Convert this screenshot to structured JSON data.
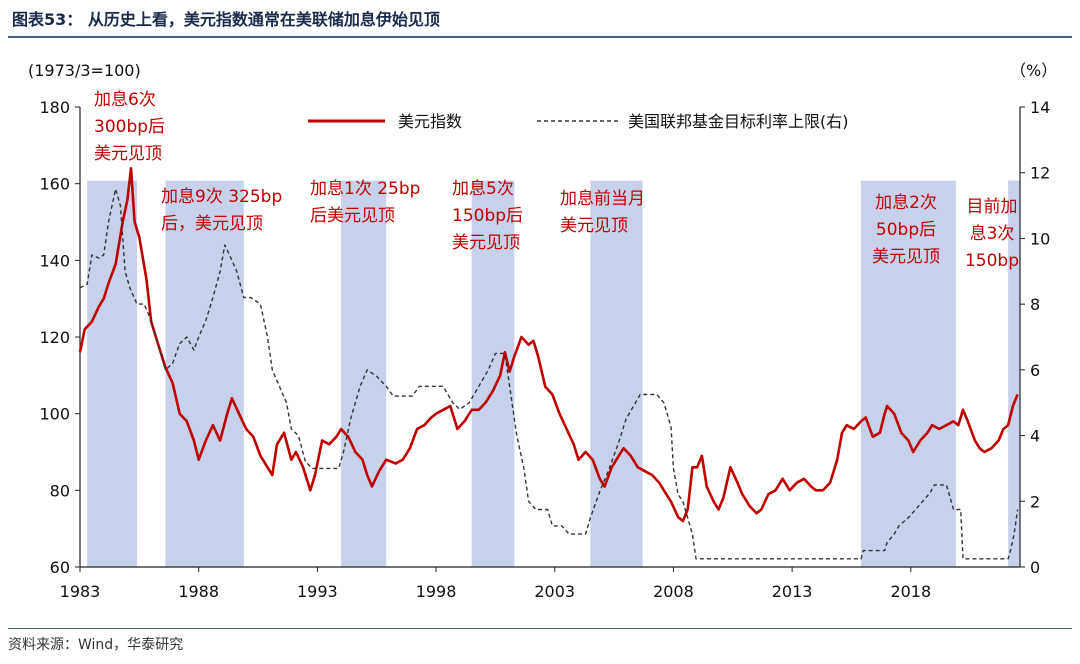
{
  "title": "图表53：  从历史上看，美元指数通常在美联储加息伊始见顶",
  "source": "资料来源：Wind，华泰研究",
  "chart_data": {
    "type": "line",
    "title": "从历史上看，美元指数通常在美联储加息伊始见顶",
    "left_axis_label": "(1973/3=100)",
    "right_axis_label": "（%）",
    "x_range": [
      1983.0,
      2022.6
    ],
    "x_ticks": [
      "1983",
      "1988",
      "1993",
      "1998",
      "2003",
      "2008",
      "2013",
      "2018"
    ],
    "y_left_range": [
      60,
      180
    ],
    "y_left_ticks": [
      60,
      80,
      100,
      120,
      140,
      160,
      180
    ],
    "y_right_range": [
      0,
      14
    ],
    "y_right_ticks": [
      0,
      2,
      4,
      6,
      8,
      10,
      12,
      14
    ],
    "legend": [
      "美元指数",
      "美国联邦基金目标利率上限(右)"
    ],
    "shaded_periods": [
      {
        "start": 1983.3,
        "end": 1985.4
      },
      {
        "start": 1986.6,
        "end": 1989.9
      },
      {
        "start": 1994.0,
        "end": 1995.9
      },
      {
        "start": 1999.5,
        "end": 2001.3
      },
      {
        "start": 2004.5,
        "end": 2006.7
      },
      {
        "start": 2015.9,
        "end": 2019.9
      },
      {
        "start": 2022.1,
        "end": 2022.6
      }
    ],
    "annotations": [
      {
        "lines": [
          "加息6次",
          "300bp后",
          "美元见顶"
        ]
      },
      {
        "lines": [
          "加息9次 325bp",
          "后，美元见顶"
        ]
      },
      {
        "lines": [
          "加息1次 25bp",
          "后美元见顶"
        ]
      },
      {
        "lines": [
          "加息5次",
          "150bp后",
          "美元见顶"
        ]
      },
      {
        "lines": [
          "加息前当月",
          "美元见顶"
        ]
      },
      {
        "lines": [
          "加息2次",
          "50bp后",
          "美元见顶"
        ]
      },
      {
        "lines": [
          "目前加",
          "息3次",
          "150bp"
        ]
      }
    ],
    "series": [
      {
        "name": "美元指数",
        "axis": "left",
        "color": "#c00000",
        "points": [
          [
            1983.0,
            116
          ],
          [
            1983.2,
            122
          ],
          [
            1983.5,
            124
          ],
          [
            1983.8,
            128
          ],
          [
            1984.0,
            130
          ],
          [
            1984.2,
            134
          ],
          [
            1984.5,
            139
          ],
          [
            1984.8,
            150
          ],
          [
            1985.0,
            156
          ],
          [
            1985.15,
            164
          ],
          [
            1985.3,
            150
          ],
          [
            1985.5,
            146
          ],
          [
            1985.8,
            135
          ],
          [
            1986.0,
            124
          ],
          [
            1986.3,
            118
          ],
          [
            1986.6,
            112
          ],
          [
            1986.9,
            108
          ],
          [
            1987.2,
            100
          ],
          [
            1987.5,
            98
          ],
          [
            1987.8,
            93
          ],
          [
            1988.0,
            88
          ],
          [
            1988.3,
            93
          ],
          [
            1988.6,
            97
          ],
          [
            1988.9,
            93
          ],
          [
            1989.2,
            100
          ],
          [
            1989.4,
            104
          ],
          [
            1989.7,
            100
          ],
          [
            1990.0,
            96
          ],
          [
            1990.3,
            94
          ],
          [
            1990.6,
            89
          ],
          [
            1990.9,
            86
          ],
          [
            1991.1,
            84
          ],
          [
            1991.3,
            92
          ],
          [
            1991.6,
            95
          ],
          [
            1991.9,
            88
          ],
          [
            1992.1,
            90
          ],
          [
            1992.4,
            86
          ],
          [
            1992.7,
            80
          ],
          [
            1992.9,
            84
          ],
          [
            1993.2,
            93
          ],
          [
            1993.5,
            92
          ],
          [
            1993.8,
            94
          ],
          [
            1994.0,
            96
          ],
          [
            1994.3,
            94
          ],
          [
            1994.6,
            90
          ],
          [
            1994.9,
            88
          ],
          [
            1995.1,
            84
          ],
          [
            1995.3,
            81
          ],
          [
            1995.6,
            85
          ],
          [
            1995.9,
            88
          ],
          [
            1996.3,
            87
          ],
          [
            1996.6,
            88
          ],
          [
            1996.9,
            91
          ],
          [
            1997.2,
            96
          ],
          [
            1997.5,
            97
          ],
          [
            1997.8,
            99
          ],
          [
            1998.0,
            100
          ],
          [
            1998.3,
            101
          ],
          [
            1998.6,
            102
          ],
          [
            1998.9,
            96
          ],
          [
            1999.2,
            98
          ],
          [
            1999.5,
            101
          ],
          [
            1999.8,
            101
          ],
          [
            2000.1,
            103
          ],
          [
            2000.4,
            106
          ],
          [
            2000.7,
            110
          ],
          [
            2000.9,
            116
          ],
          [
            2001.1,
            111
          ],
          [
            2001.3,
            115
          ],
          [
            2001.6,
            120
          ],
          [
            2001.9,
            118
          ],
          [
            2002.1,
            119
          ],
          [
            2002.3,
            115
          ],
          [
            2002.6,
            107
          ],
          [
            2002.9,
            105
          ],
          [
            2003.2,
            100
          ],
          [
            2003.5,
            96
          ],
          [
            2003.8,
            92
          ],
          [
            2004.0,
            88
          ],
          [
            2004.3,
            90
          ],
          [
            2004.6,
            88
          ],
          [
            2004.9,
            83
          ],
          [
            2005.1,
            81
          ],
          [
            2005.4,
            86
          ],
          [
            2005.7,
            89
          ],
          [
            2005.9,
            91
          ],
          [
            2006.2,
            89
          ],
          [
            2006.5,
            86
          ],
          [
            2006.8,
            85
          ],
          [
            2007.1,
            84
          ],
          [
            2007.4,
            82
          ],
          [
            2007.7,
            79
          ],
          [
            2007.9,
            77
          ],
          [
            2008.2,
            73
          ],
          [
            2008.4,
            72
          ],
          [
            2008.6,
            75
          ],
          [
            2008.8,
            86
          ],
          [
            2009.0,
            86
          ],
          [
            2009.2,
            89
          ],
          [
            2009.4,
            81
          ],
          [
            2009.7,
            77
          ],
          [
            2009.9,
            75
          ],
          [
            2010.1,
            78
          ],
          [
            2010.4,
            86
          ],
          [
            2010.7,
            82
          ],
          [
            2010.9,
            79
          ],
          [
            2011.2,
            76
          ],
          [
            2011.5,
            74
          ],
          [
            2011.7,
            75
          ],
          [
            2012.0,
            79
          ],
          [
            2012.3,
            80
          ],
          [
            2012.6,
            83
          ],
          [
            2012.9,
            80
          ],
          [
            2013.2,
            82
          ],
          [
            2013.5,
            83
          ],
          [
            2013.8,
            81
          ],
          [
            2014.0,
            80
          ],
          [
            2014.3,
            80
          ],
          [
            2014.6,
            82
          ],
          [
            2014.9,
            88
          ],
          [
            2015.1,
            95
          ],
          [
            2015.3,
            97
          ],
          [
            2015.6,
            96
          ],
          [
            2015.9,
            98
          ],
          [
            2016.1,
            99
          ],
          [
            2016.4,
            94
          ],
          [
            2016.7,
            95
          ],
          [
            2016.9,
            100
          ],
          [
            2017.0,
            102
          ],
          [
            2017.3,
            100
          ],
          [
            2017.6,
            95
          ],
          [
            2017.9,
            93
          ],
          [
            2018.1,
            90
          ],
          [
            2018.4,
            93
          ],
          [
            2018.7,
            95
          ],
          [
            2018.9,
            97
          ],
          [
            2019.2,
            96
          ],
          [
            2019.5,
            97
          ],
          [
            2019.8,
            98
          ],
          [
            2020.0,
            97
          ],
          [
            2020.2,
            101
          ],
          [
            2020.4,
            98
          ],
          [
            2020.7,
            93
          ],
          [
            2020.9,
            91
          ],
          [
            2021.1,
            90
          ],
          [
            2021.4,
            91
          ],
          [
            2021.7,
            93
          ],
          [
            2021.9,
            96
          ],
          [
            2022.1,
            97
          ],
          [
            2022.3,
            102
          ],
          [
            2022.5,
            105
          ]
        ]
      },
      {
        "name": "美国联邦基金目标利率上限(右)",
        "axis": "right",
        "color": "#333333",
        "dashed": true,
        "points": [
          [
            1983.0,
            8.5
          ],
          [
            1983.3,
            8.6
          ],
          [
            1983.5,
            9.5
          ],
          [
            1983.8,
            9.4
          ],
          [
            1984.0,
            9.5
          ],
          [
            1984.2,
            10.5
          ],
          [
            1984.5,
            11.5
          ],
          [
            1984.7,
            11.0
          ],
          [
            1984.9,
            9.0
          ],
          [
            1985.1,
            8.5
          ],
          [
            1985.4,
            8.0
          ],
          [
            1985.7,
            8.0
          ],
          [
            1986.0,
            7.5
          ],
          [
            1986.3,
            6.8
          ],
          [
            1986.6,
            6.0
          ],
          [
            1986.9,
            6.2
          ],
          [
            1987.2,
            6.8
          ],
          [
            1987.5,
            7.0
          ],
          [
            1987.8,
            6.6
          ],
          [
            1988.0,
            7.0
          ],
          [
            1988.3,
            7.5
          ],
          [
            1988.6,
            8.2
          ],
          [
            1988.9,
            9.0
          ],
          [
            1989.1,
            9.8
          ],
          [
            1989.3,
            9.5
          ],
          [
            1989.6,
            9.0
          ],
          [
            1989.9,
            8.2
          ],
          [
            1990.2,
            8.2
          ],
          [
            1990.6,
            8.0
          ],
          [
            1990.9,
            7.0
          ],
          [
            1991.1,
            6.0
          ],
          [
            1991.4,
            5.5
          ],
          [
            1991.7,
            5.0
          ],
          [
            1991.9,
            4.2
          ],
          [
            1992.2,
            4.0
          ],
          [
            1992.5,
            3.2
          ],
          [
            1992.8,
            3.0
          ],
          [
            1993.2,
            3.0
          ],
          [
            1993.6,
            3.0
          ],
          [
            1993.9,
            3.0
          ],
          [
            1994.1,
            3.5
          ],
          [
            1994.4,
            4.5
          ],
          [
            1994.8,
            5.5
          ],
          [
            1995.1,
            6.0
          ],
          [
            1995.5,
            5.8
          ],
          [
            1995.9,
            5.5
          ],
          [
            1996.2,
            5.2
          ],
          [
            1996.6,
            5.2
          ],
          [
            1997.0,
            5.2
          ],
          [
            1997.3,
            5.5
          ],
          [
            1997.7,
            5.5
          ],
          [
            1998.0,
            5.5
          ],
          [
            1998.3,
            5.5
          ],
          [
            1998.7,
            5.0
          ],
          [
            1999.0,
            4.8
          ],
          [
            1999.4,
            5.0
          ],
          [
            1999.8,
            5.5
          ],
          [
            2000.2,
            6.0
          ],
          [
            2000.5,
            6.5
          ],
          [
            2000.9,
            6.5
          ],
          [
            2001.1,
            5.5
          ],
          [
            2001.4,
            4.0
          ],
          [
            2001.7,
            3.0
          ],
          [
            2001.9,
            2.0
          ],
          [
            2002.2,
            1.75
          ],
          [
            2002.7,
            1.75
          ],
          [
            2002.9,
            1.25
          ],
          [
            2003.3,
            1.25
          ],
          [
            2003.6,
            1.0
          ],
          [
            2004.3,
            1.0
          ],
          [
            2004.5,
            1.5
          ],
          [
            2004.9,
            2.3
          ],
          [
            2005.3,
            3.0
          ],
          [
            2005.7,
            3.8
          ],
          [
            2006.0,
            4.5
          ],
          [
            2006.4,
            5.0
          ],
          [
            2006.6,
            5.25
          ],
          [
            2007.3,
            5.25
          ],
          [
            2007.6,
            5.0
          ],
          [
            2007.9,
            4.25
          ],
          [
            2008.0,
            3.0
          ],
          [
            2008.2,
            2.2
          ],
          [
            2008.4,
            2.0
          ],
          [
            2008.8,
            1.0
          ],
          [
            2008.95,
            0.25
          ],
          [
            2015.9,
            0.25
          ],
          [
            2016.0,
            0.5
          ],
          [
            2016.9,
            0.5
          ],
          [
            2017.0,
            0.75
          ],
          [
            2017.3,
            1.0
          ],
          [
            2017.5,
            1.25
          ],
          [
            2017.9,
            1.5
          ],
          [
            2018.2,
            1.75
          ],
          [
            2018.5,
            2.0
          ],
          [
            2018.8,
            2.25
          ],
          [
            2019.0,
            2.5
          ],
          [
            2019.5,
            2.5
          ],
          [
            2019.6,
            2.25
          ],
          [
            2019.8,
            1.75
          ],
          [
            2020.1,
            1.75
          ],
          [
            2020.2,
            0.25
          ],
          [
            2022.1,
            0.25
          ],
          [
            2022.2,
            0.5
          ],
          [
            2022.35,
            1.0
          ],
          [
            2022.5,
            1.75
          ]
        ]
      }
    ]
  }
}
